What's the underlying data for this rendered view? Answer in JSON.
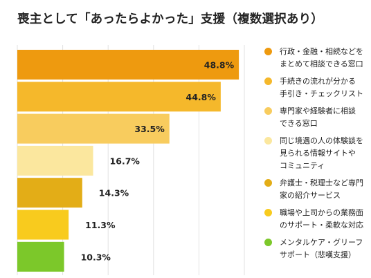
{
  "title": "喪主として「あったらよかった」支援（複数選択あり）",
  "chart_data": {
    "type": "bar",
    "orientation": "horizontal",
    "categories": [
      "行政・金融・相続などを\nまとめて相談できる窓口",
      "手続きの流れが分かる\n手引き・チェックリスト",
      "専門家や経験者に相談\nできる窓口",
      "同じ境遇の人の体験談を\n見られる情報サイトや\nコミュニティ",
      "弁護士・税理士など専門\n家の紹介サービス",
      "職場や上司からの業務面\nのサポート・柔軟な対応",
      "メンタルケア・グリーフ\nサポート（悲嘆支援）"
    ],
    "values": [
      48.8,
      44.8,
      33.5,
      16.7,
      14.3,
      11.3,
      10.3
    ],
    "labels": [
      "48.8%",
      "44.8%",
      "33.5%",
      "16.7%",
      "14.3%",
      "11.3%",
      "10.3%"
    ],
    "colors": [
      "#EE9A0F",
      "#F5B82B",
      "#F8CC5E",
      "#FBE79E",
      "#E3AD17",
      "#F8CB1E",
      "#7CC82A"
    ],
    "xlim": [
      0,
      50
    ],
    "grid": true,
    "legend": "right"
  }
}
